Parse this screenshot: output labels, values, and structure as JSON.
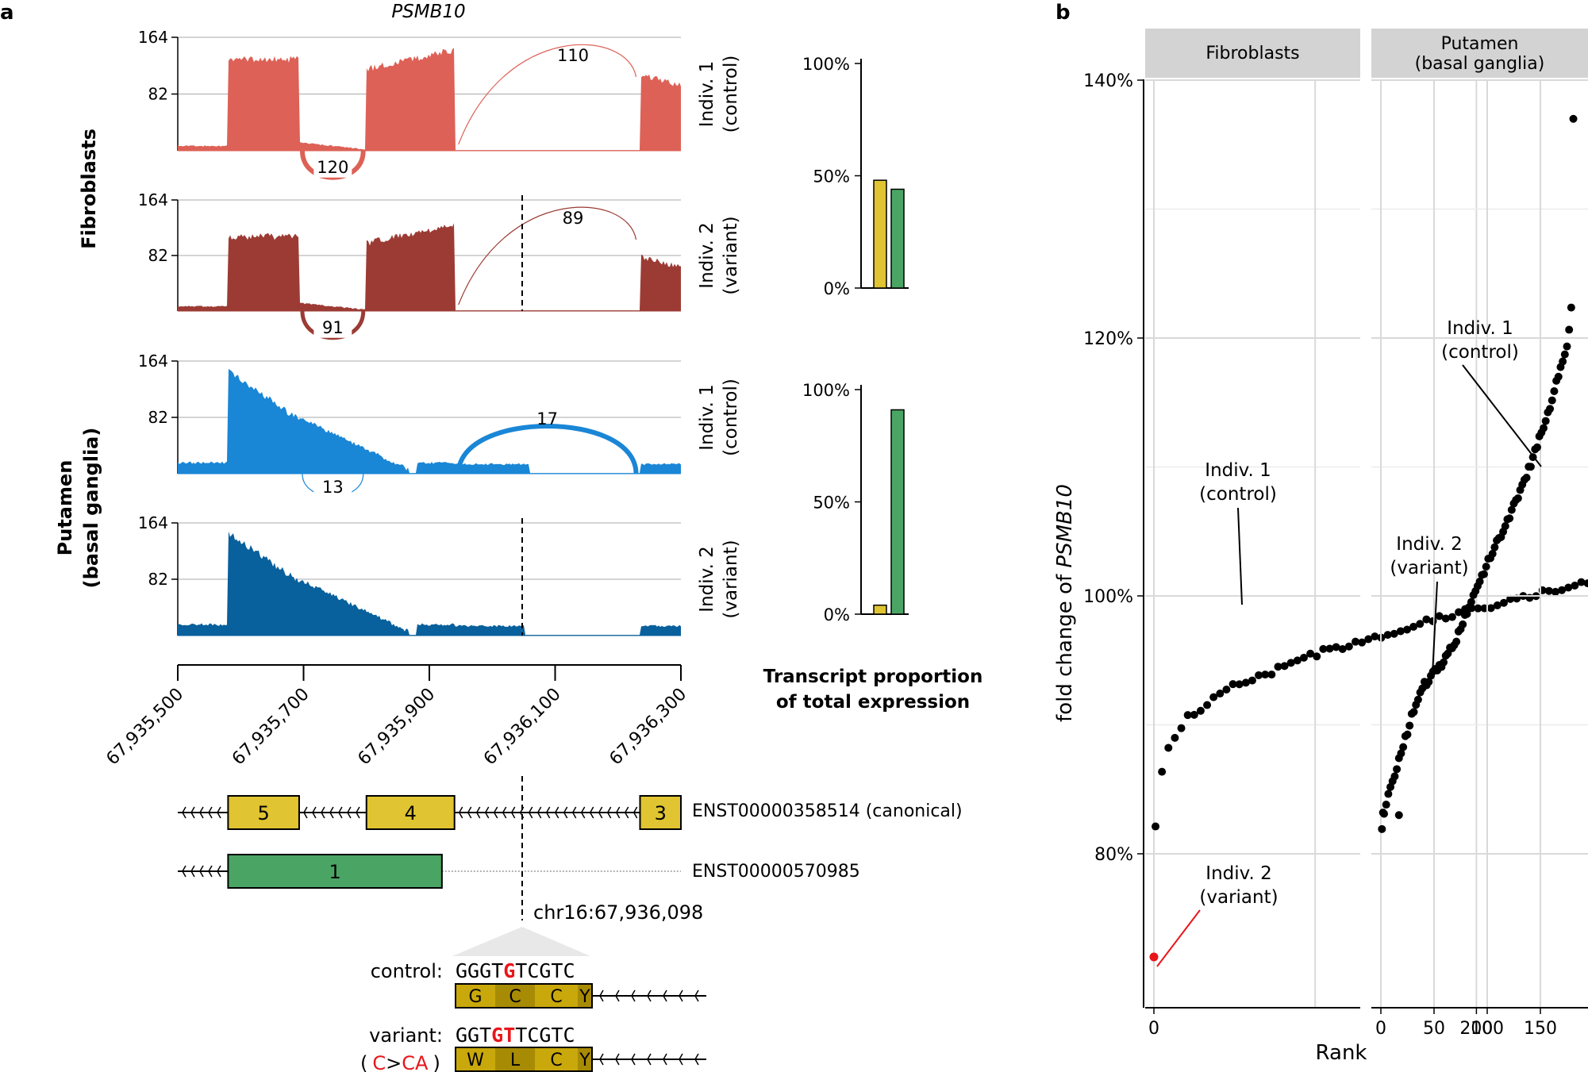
{
  "panel_a": {
    "label": "a",
    "gene_title": "PSMB10",
    "tissues": {
      "fibroblasts": {
        "label": "Fibroblasts",
        "color": "#b0403a"
      },
      "putamen": {
        "label_line1": "Putamen",
        "label_line2": "(basal ganglia)",
        "color": "#1f77b4"
      }
    },
    "track_ticks": [
      "164",
      "82"
    ],
    "tracks": [
      {
        "indiv_line1": "Indiv. 1",
        "indiv_line2": "(control)",
        "color": "#dd6157",
        "junction_skip": "120",
        "junction_alt": "110"
      },
      {
        "indiv_line1": "Indiv. 2",
        "indiv_line2": "(variant)",
        "color": "#9c3b34",
        "junction_skip": "91",
        "junction_alt": "89"
      },
      {
        "indiv_line1": "Indiv. 1",
        "indiv_line2": "(control)",
        "color": "#1a86d6",
        "junction_skip": "13",
        "junction_alt": "17"
      },
      {
        "indiv_line1": "Indiv. 2",
        "indiv_line2": "(variant)",
        "color": "#08609c"
      }
    ],
    "x_axis_ticks": [
      "67,935,500",
      "67,935,700",
      "67,935,900",
      "67,936,100",
      "67,936,300"
    ],
    "transcripts": [
      {
        "name": "ENST00000358514 (canonical)",
        "exons": [
          "5",
          "4",
          "3"
        ],
        "color": "#e0c431"
      },
      {
        "name": "ENST00000570985",
        "exons": [
          "1"
        ],
        "color": "#4aa565"
      }
    ],
    "variant_position": "chr16:67,936,098",
    "sequence": {
      "control_label": "control:",
      "control_seq_pre": "GGGT",
      "control_seq_highlight": "G",
      "control_seq_post": "TCGTC",
      "control_aa": [
        "G",
        "C",
        "C",
        "Y"
      ],
      "variant_label": "variant:",
      "variant_seq_pre": "GGT",
      "variant_seq_highlight": "GT",
      "variant_seq_post": "TCGTC",
      "variant_note_open": "(",
      "variant_note_from": "C",
      "variant_note_arrow": ">",
      "variant_note_to": "CA",
      "variant_note_close": ")",
      "variant_aa": [
        "W",
        "L",
        "C",
        "Y"
      ]
    },
    "proportion_title_line1": "Transcript proportion",
    "proportion_title_line2": "of total expression",
    "proportion_ticks": [
      "100%",
      "50%",
      "0%"
    ],
    "colors": {
      "canonical": "#e0c431",
      "alt": "#4aa565",
      "highlight": "#e8161b"
    }
  },
  "panel_b": {
    "label": "b",
    "facets": [
      {
        "line1": "Fibroblasts",
        "line2": ""
      },
      {
        "line1": "Putamen",
        "line2": "(basal ganglia)"
      }
    ],
    "y_label_prefix": "fold change of ",
    "y_label_gene": "PSMB10",
    "x_label": "Rank",
    "y_ticks": [
      "140%",
      "120%",
      "100%",
      "80%"
    ],
    "x_ticks_left": [
      "0",
      "200",
      "400"
    ],
    "x_ticks_right": [
      "0",
      "50",
      "100",
      "150"
    ],
    "annotations": {
      "fib_control_line1": "Indiv. 1",
      "fib_control_line2": "(control)",
      "fib_variant_line1": "Indiv. 2",
      "fib_variant_line2": "(variant)",
      "put_control_line1": "Indiv. 1",
      "put_control_line2": "(control)",
      "put_variant_line1": "Indiv. 2",
      "put_variant_line2": "(variant)"
    }
  },
  "chart_data": [
    {
      "type": "bar",
      "title": "Transcript proportion of total expression (Fibroblasts)",
      "categories": [
        "ENST00000358514 (canonical)",
        "ENST00000570985"
      ],
      "values": [
        48,
        44
      ],
      "ylim": [
        0,
        100
      ]
    },
    {
      "type": "bar",
      "title": "Transcript proportion of total expression (Putamen)",
      "categories": [
        "ENST00000358514 (canonical)",
        "ENST00000570985"
      ],
      "values": [
        4,
        91
      ],
      "ylim": [
        0,
        100
      ]
    },
    {
      "type": "scatter",
      "facet": "Fibroblasts",
      "xlabel": "Rank",
      "ylabel": "fold change of PSMB10",
      "xlim": [
        -20,
        500
      ],
      "ylim": [
        70,
        144
      ],
      "curve_points": [
        [
          1,
          82
        ],
        [
          3,
          85
        ],
        [
          8,
          88
        ],
        [
          20,
          90.5
        ],
        [
          50,
          93
        ],
        [
          100,
          95.5
        ],
        [
          150,
          97.3
        ],
        [
          200,
          99
        ],
        [
          250,
          100.5
        ],
        [
          300,
          102
        ],
        [
          350,
          104
        ],
        [
          400,
          106.5
        ],
        [
          440,
          109
        ],
        [
          465,
          111.5
        ],
        [
          485,
          115
        ],
        [
          490,
          117.5
        ]
      ],
      "highlight": {
        "label": "Indiv. 2 (variant)",
        "x": 0,
        "y": 72
      },
      "control": {
        "label": "Indiv. 1 (control)",
        "x": 215,
        "y": 99
      }
    },
    {
      "type": "scatter",
      "facet": "Putamen (basal ganglia)",
      "xlabel": "Rank",
      "ylabel": "fold change of PSMB10",
      "xlim": [
        -5,
        190
      ],
      "ylim": [
        70,
        144
      ],
      "curve_points": [
        [
          1,
          82
        ],
        [
          3,
          83
        ],
        [
          6,
          84.5
        ],
        [
          12,
          86
        ],
        [
          20,
          88
        ],
        [
          30,
          91
        ],
        [
          40,
          93
        ],
        [
          50,
          94
        ],
        [
          60,
          95
        ],
        [
          70,
          96.5
        ],
        [
          80,
          98.5
        ],
        [
          100,
          102.5
        ],
        [
          120,
          106
        ],
        [
          140,
          110
        ],
        [
          150,
          112.5
        ],
        [
          160,
          115
        ],
        [
          170,
          118
        ],
        [
          175,
          119.5
        ],
        [
          178,
          121
        ],
        [
          180,
          123.5
        ]
      ],
      "extra_points": [
        [
          17,
          83
        ],
        [
          2,
          83.2
        ],
        [
          181,
          137
        ]
      ],
      "control": {
        "label": "Indiv. 1 (control)",
        "x": 152,
        "y": 110
      },
      "variant": {
        "label": "Indiv. 2 (variant)",
        "x": 49,
        "y": 94
      }
    }
  ]
}
